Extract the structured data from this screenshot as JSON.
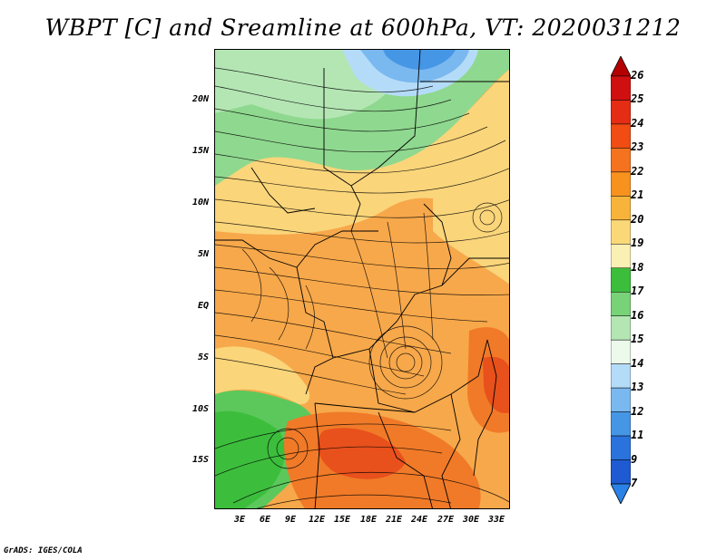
{
  "title": "WBPT [C] and Sreamline at 600hPa, VT: 2020031212",
  "footer": "GrADS: IGES/COLA",
  "map": {
    "lat_labels": [
      "20N",
      "15N",
      "10N",
      "5N",
      "EQ",
      "5S",
      "10S",
      "15S"
    ],
    "lon_labels": [
      "3E",
      "6E",
      "9E",
      "12E",
      "15E",
      "18E",
      "21E",
      "24E",
      "27E",
      "30E",
      "33E"
    ]
  },
  "colorbar": {
    "labels": [
      "26",
      "25",
      "24",
      "23",
      "22",
      "21",
      "20",
      "19",
      "18",
      "17",
      "16",
      "15",
      "14",
      "13",
      "12",
      "11",
      "9",
      "7"
    ],
    "colors": [
      "#b40000",
      "#d01010",
      "#e52c14",
      "#f04c14",
      "#f5721e",
      "#f7921e",
      "#f8b43a",
      "#fad878",
      "#fbf0b4",
      "#3cbe3c",
      "#78d278",
      "#b4e6b4",
      "#ebfaeb",
      "#b4dcf8",
      "#7ab8f0",
      "#4696e6",
      "#2a72dc",
      "#1e5ad2",
      "#2a82e6"
    ]
  }
}
